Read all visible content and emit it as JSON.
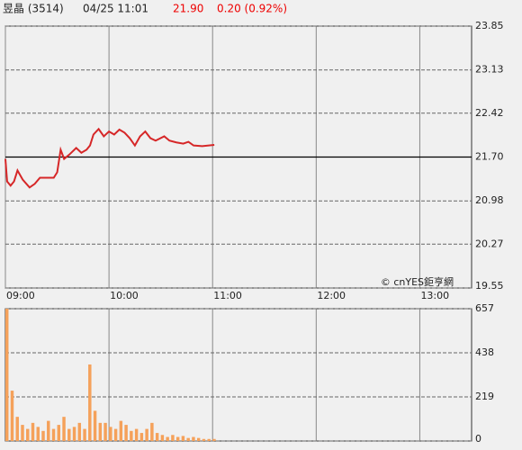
{
  "header": {
    "name": "昱晶 (3514)",
    "time": "04/25 11:01",
    "price": "21.90",
    "change": "0.20 (0.92%)"
  },
  "chart_data": [
    {
      "type": "line",
      "color": "#d62728",
      "watermark": "© cnYES鉅亨網",
      "xlim": [
        0,
        270
      ],
      "ylim": [
        19.55,
        23.85
      ],
      "reference": 21.7,
      "xticks": [
        {
          "value": 0,
          "label": "09:00"
        },
        {
          "value": 60,
          "label": "10:00"
        },
        {
          "value": 120,
          "label": "11:00"
        },
        {
          "value": 180,
          "label": "12:00"
        },
        {
          "value": 240,
          "label": "13:00"
        }
      ],
      "yticks": [
        19.55,
        20.27,
        20.98,
        {
          "value": 21.7,
          "label": "21.70"
        },
        22.42,
        23.13,
        23.85
      ],
      "x": [
        0,
        1,
        3,
        5,
        7,
        10,
        14,
        17,
        20,
        23,
        28,
        30,
        32,
        34,
        37,
        41,
        44,
        47,
        49,
        51,
        54,
        57,
        60,
        63,
        66,
        69,
        72,
        75,
        78,
        81,
        84,
        87,
        92,
        95,
        99,
        103,
        106,
        109,
        114,
        121
      ],
      "values": [
        21.67,
        21.3,
        21.23,
        21.3,
        21.48,
        21.33,
        21.2,
        21.26,
        21.36,
        21.36,
        21.36,
        21.45,
        21.82,
        21.67,
        21.74,
        21.85,
        21.77,
        21.82,
        21.89,
        22.07,
        22.16,
        22.04,
        22.12,
        22.07,
        22.15,
        22.1,
        22.01,
        21.89,
        22.04,
        22.12,
        22.01,
        21.97,
        22.04,
        21.97,
        21.94,
        21.92,
        21.95,
        21.89,
        21.88,
        21.9
      ]
    },
    {
      "type": "bar",
      "color": "#f5a15a",
      "xlim": [
        0,
        270
      ],
      "ylim": [
        0,
        657
      ],
      "yticks": [
        0,
        219,
        438,
        657
      ],
      "x": [
        0,
        3,
        6,
        9,
        12,
        15,
        18,
        21,
        24,
        27,
        30,
        33,
        36,
        39,
        42,
        45,
        48,
        51,
        54,
        57,
        60,
        63,
        66,
        69,
        72,
        75,
        78,
        81,
        84,
        87,
        90,
        93,
        96,
        99,
        102,
        105,
        108,
        111,
        114,
        117,
        120
      ],
      "values": [
        657,
        250,
        120,
        80,
        60,
        90,
        70,
        50,
        100,
        60,
        80,
        120,
        60,
        70,
        90,
        60,
        380,
        150,
        90,
        90,
        70,
        60,
        100,
        80,
        50,
        60,
        40,
        60,
        90,
        40,
        30,
        20,
        30,
        20,
        25,
        15,
        20,
        15,
        10,
        10,
        10
      ]
    }
  ]
}
